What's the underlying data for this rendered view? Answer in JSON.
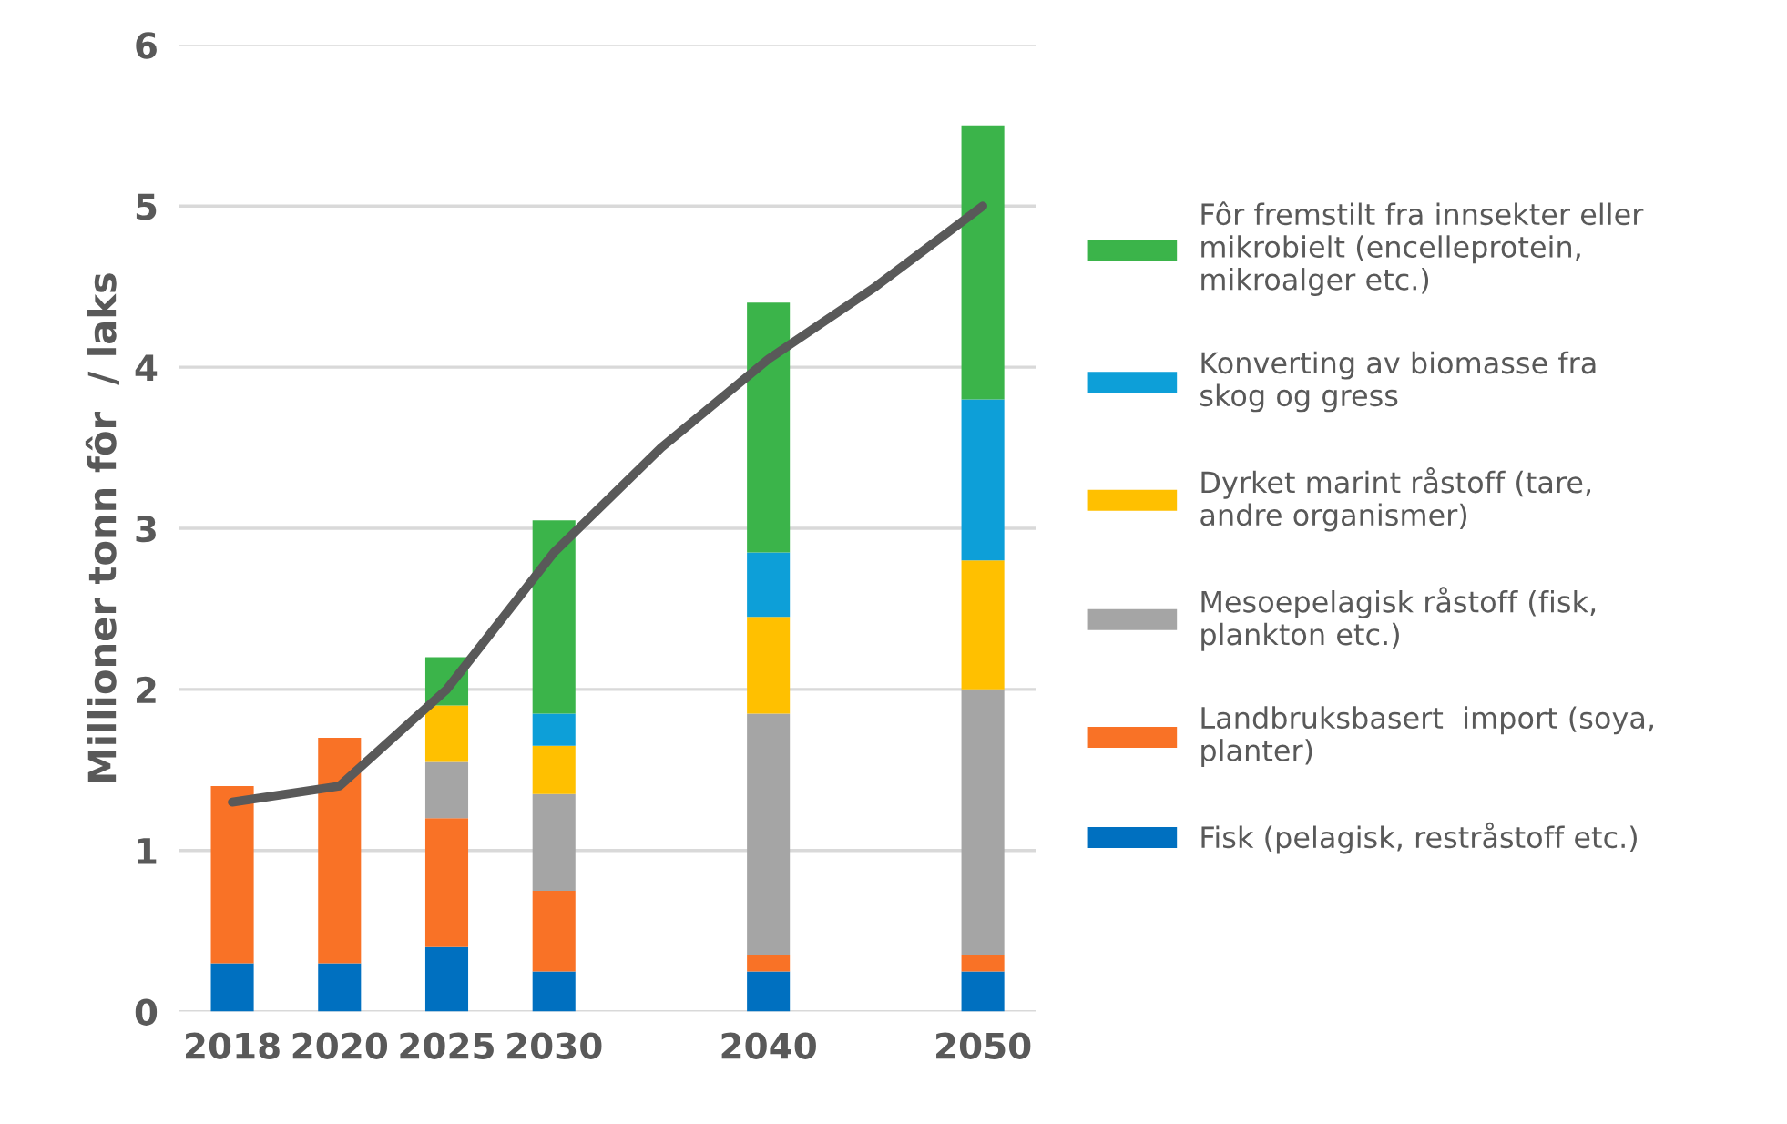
{
  "chart_data": {
    "type": "bar",
    "stacked": true,
    "ylabel": "Millioner tonn fôr  / laks",
    "categories": [
      "2018",
      "2020",
      "2025",
      "2030",
      null,
      "2040",
      null,
      "2050"
    ],
    "ylim": [
      0,
      6
    ],
    "yticks": [
      0,
      1,
      2,
      3,
      4,
      5,
      6
    ],
    "grid": "y",
    "legend": "right",
    "series": [
      {
        "name": "Fisk (pelagisk, restråstoff etc.)",
        "color": "#0070c0",
        "values": [
          0.3,
          0.3,
          0.4,
          0.25,
          null,
          0.25,
          null,
          0.25
        ]
      },
      {
        "name": "Landbruksbasert  import (soya,\nplanter)",
        "color": "#f97226",
        "values": [
          1.1,
          1.4,
          0.8,
          0.5,
          null,
          0.1,
          null,
          0.1
        ]
      },
      {
        "name": "Mesoepelagisk råstoff (fisk,\nplankton etc.)",
        "color": "#a5a5a5",
        "values": [
          null,
          null,
          0.35,
          0.6,
          null,
          1.5,
          null,
          1.65
        ]
      },
      {
        "name": "Dyrket marint råstoff (tare,\nandre organismer)",
        "color": "#ffc000",
        "values": [
          null,
          null,
          0.35,
          0.3,
          null,
          0.6,
          null,
          0.8
        ]
      },
      {
        "name": "Konverting av biomasse fra\nskog og gress",
        "color": "#0d9fd8",
        "values": [
          null,
          null,
          null,
          0.2,
          null,
          0.4,
          null,
          1.0
        ]
      },
      {
        "name": "Fôr fremstilt fra innsekter eller\nmikrobielt (encelleprotein,\nmikroalger etc.)",
        "color": "#3bb44a",
        "values": [
          null,
          null,
          0.3,
          1.2,
          null,
          1.55,
          null,
          1.7
        ]
      },
      {
        "type": "line",
        "color": "#595959",
        "values": [
          1.3,
          1.4,
          2.0,
          2.85,
          3.5,
          4.05,
          4.5,
          5.0
        ]
      }
    ]
  }
}
